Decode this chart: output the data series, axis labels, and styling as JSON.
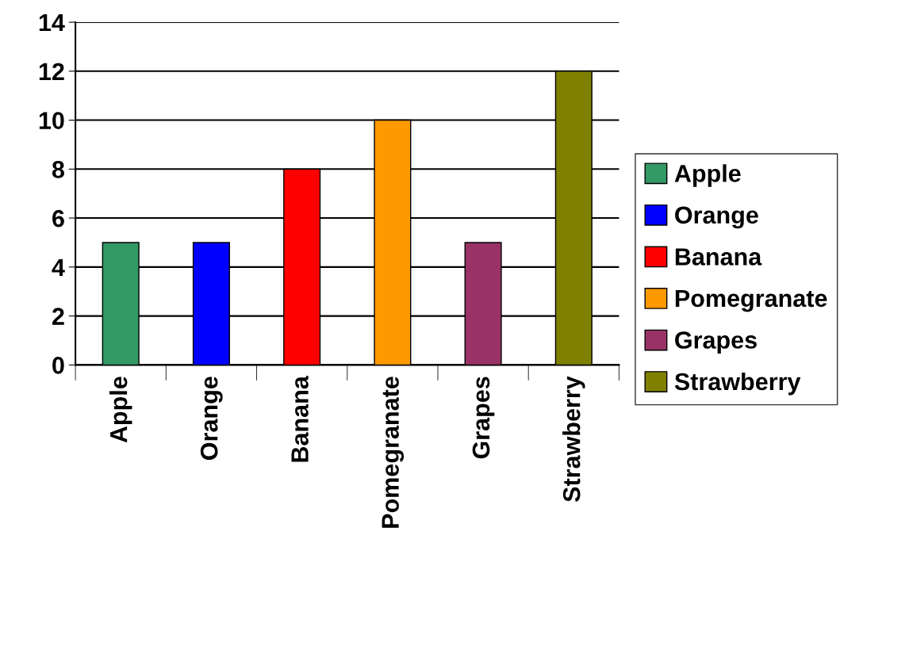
{
  "chart_data": {
    "type": "bar",
    "categories": [
      "Apple",
      "Orange",
      "Banana",
      "Pomegranate",
      "Grapes",
      "Strawberry"
    ],
    "series": [
      {
        "name": "Apple",
        "color": "#339966",
        "values": [
          5,
          null,
          null,
          null,
          null,
          null
        ]
      },
      {
        "name": "Orange",
        "color": "#0000ff",
        "values": [
          null,
          5,
          null,
          null,
          null,
          null
        ]
      },
      {
        "name": "Banana",
        "color": "#ff0000",
        "values": [
          null,
          null,
          8,
          null,
          null,
          null
        ]
      },
      {
        "name": "Pomegranate",
        "color": "#ff9900",
        "values": [
          null,
          null,
          null,
          10,
          null,
          null
        ]
      },
      {
        "name": "Grapes",
        "color": "#993366",
        "values": [
          null,
          null,
          null,
          null,
          5,
          null
        ]
      },
      {
        "name": "Strawberry",
        "color": "#808000",
        "values": [
          null,
          null,
          null,
          null,
          null,
          12
        ]
      }
    ],
    "ylim": [
      0,
      14
    ],
    "yticks": [
      0,
      2,
      4,
      6,
      8,
      10,
      12,
      14
    ],
    "grid": "y",
    "legend": "right"
  }
}
